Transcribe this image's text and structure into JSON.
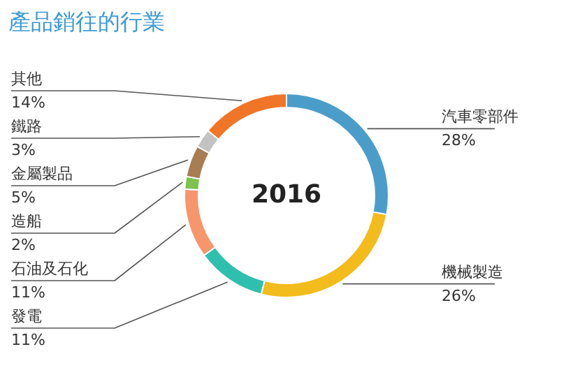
{
  "chart_data": {
    "type": "donut",
    "title": "產品銷往的行業",
    "categories": [
      "汽車零部件",
      "機械製造",
      "發電",
      "石油及石化",
      "造船",
      "金屬製品",
      "鐵路",
      "其他"
    ],
    "values": [
      28,
      26,
      11,
      11,
      2,
      5,
      3,
      14
    ],
    "value_labels": [
      "28%",
      "26%",
      "11%",
      "11%",
      "2%",
      "5%",
      "3%",
      "14%"
    ],
    "colors": [
      "#4b9dc9",
      "#f3bb1c",
      "#2fbfaf",
      "#f7956b",
      "#7cc24b",
      "#a97d52",
      "#c3c3c3",
      "#f17527"
    ],
    "annotations": [
      "2016"
    ]
  }
}
